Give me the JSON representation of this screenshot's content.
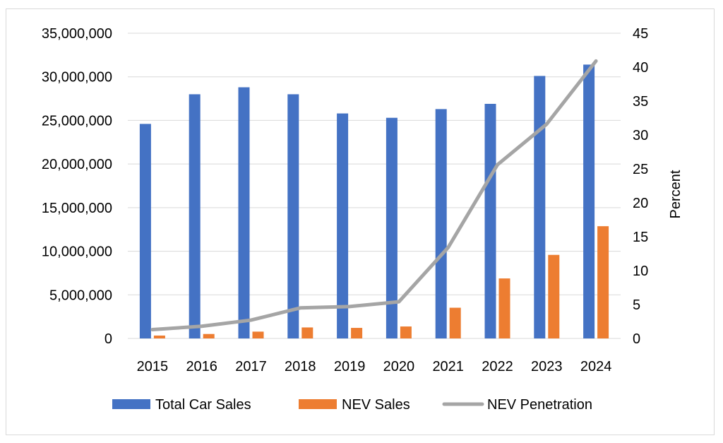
{
  "chart_data": {
    "type": "bar",
    "categories": [
      "2015",
      "2016",
      "2017",
      "2018",
      "2019",
      "2020",
      "2021",
      "2022",
      "2023",
      "2024"
    ],
    "series": [
      {
        "name": "Total Car Sales",
        "type": "bar",
        "axis": "left",
        "color": "#4472C4",
        "values": [
          24600000,
          28000000,
          28800000,
          28000000,
          25800000,
          25300000,
          26300000,
          26900000,
          30100000,
          31400000
        ]
      },
      {
        "name": "NEV Sales",
        "type": "bar",
        "axis": "left",
        "color": "#ED7D31",
        "values": [
          330000,
          510000,
          780000,
          1260000,
          1210000,
          1370000,
          3520000,
          6880000,
          9580000,
          12870000
        ]
      },
      {
        "name": "NEV Penetration",
        "type": "line",
        "axis": "right",
        "color": "#A5A5A5",
        "values": [
          1.3,
          1.8,
          2.7,
          4.5,
          4.7,
          5.4,
          13.4,
          25.6,
          31.6,
          40.9
        ]
      }
    ],
    "left_axis": {
      "min": 0,
      "max": 35000000,
      "ticks": [
        "0",
        "5,000,000",
        "10,000,000",
        "15,000,000",
        "20,000,000",
        "25,000,000",
        "30,000,000",
        "35,000,000"
      ]
    },
    "right_axis": {
      "label": "Percent",
      "min": 0,
      "max": 45,
      "ticks": [
        "0",
        "5",
        "10",
        "15",
        "20",
        "25",
        "30",
        "35",
        "40",
        "45"
      ]
    },
    "grid": true,
    "legend": "bottom"
  }
}
